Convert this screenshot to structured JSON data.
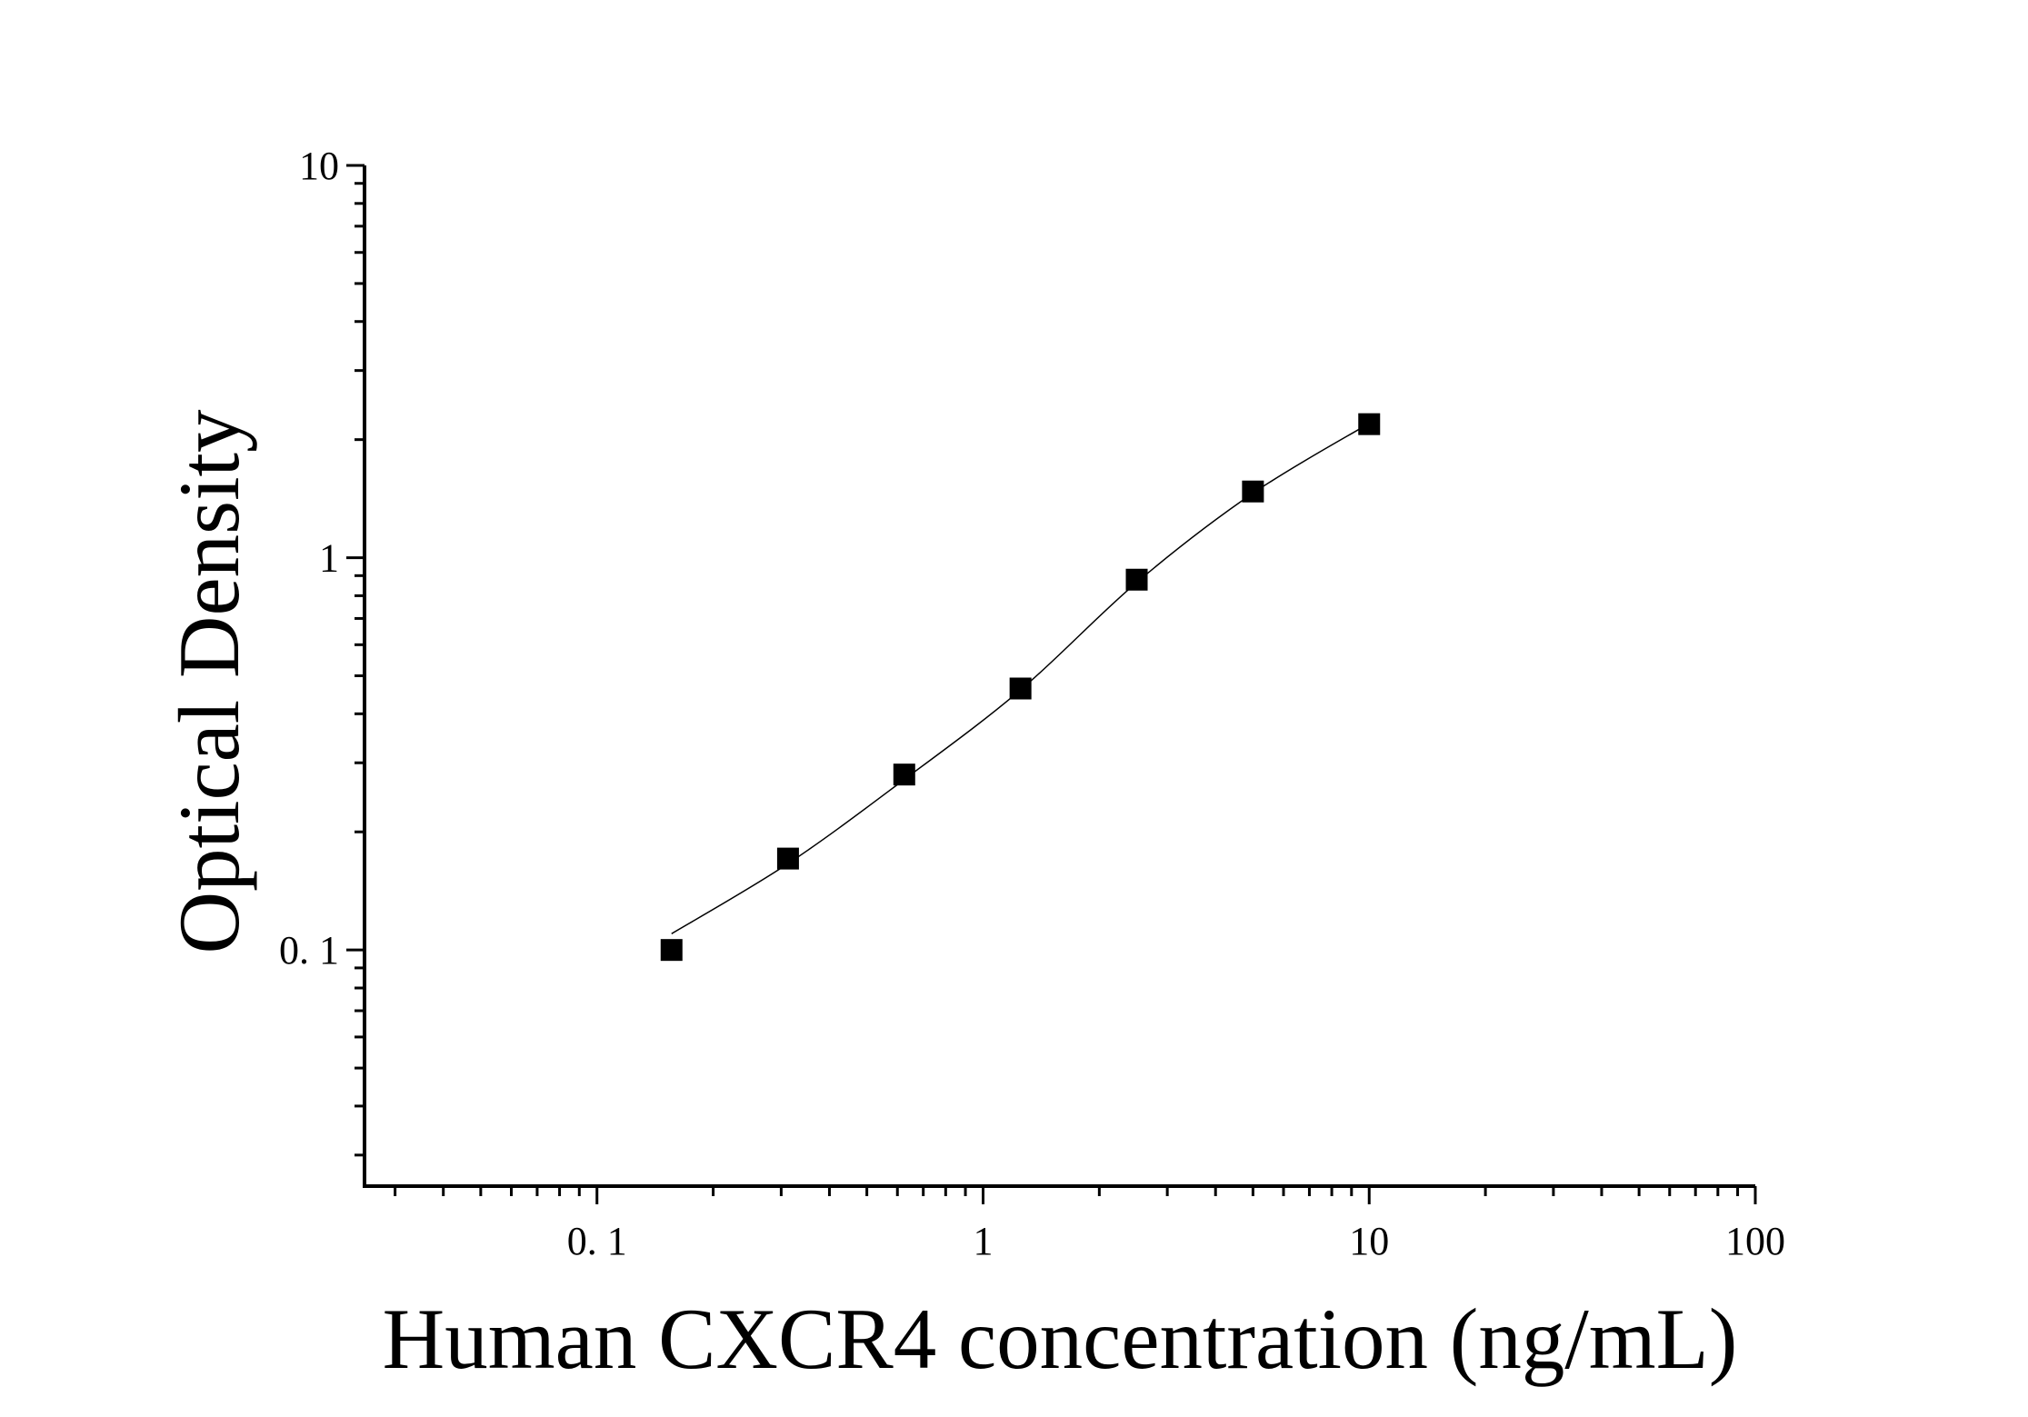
{
  "chart_data": {
    "type": "scatter",
    "title": "",
    "xlabel": "Human CXCR4 concentration (ng/mL)",
    "ylabel": "Optical Density",
    "xscale": "log",
    "yscale": "log",
    "xlim": [
      0.025,
      100
    ],
    "ylim": [
      0.025,
      10
    ],
    "xticks": [
      {
        "value": 0.1,
        "label": "0. 1"
      },
      {
        "value": 1,
        "label": "1"
      },
      {
        "value": 10,
        "label": "10"
      },
      {
        "value": 100,
        "label": "100"
      }
    ],
    "yticks": [
      {
        "value": 0.1,
        "label": "0. 1"
      },
      {
        "value": 1,
        "label": "1"
      },
      {
        "value": 10,
        "label": "10"
      }
    ],
    "grid": false,
    "legend": "none",
    "marker": "square",
    "color": "#000000",
    "points": {
      "x": [
        0.156,
        0.3125,
        0.625,
        1.25,
        2.5,
        5,
        10
      ],
      "y": [
        0.1,
        0.171,
        0.28,
        0.464,
        0.879,
        1.475,
        2.19
      ]
    },
    "fit_curve": {
      "x": [
        0.156,
        0.3125,
        0.625,
        1.25,
        2.5,
        5,
        10
      ],
      "y": [
        0.11,
        0.166,
        0.272,
        0.46,
        0.865,
        1.46,
        2.2
      ]
    }
  }
}
